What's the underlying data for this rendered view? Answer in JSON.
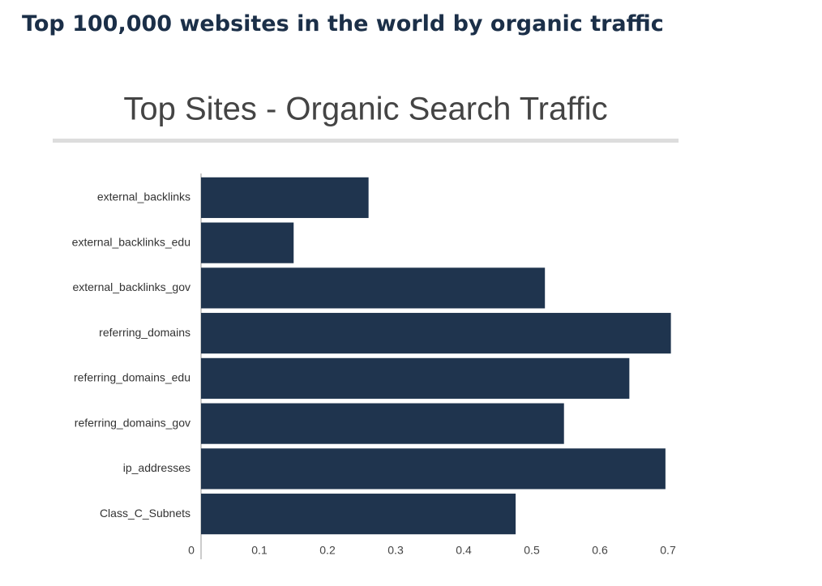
{
  "page_title": "Top 100,000 websites in the world by organic traffic",
  "chart_data": {
    "type": "hbar",
    "title": "Top Sites - Organic Search Traffic",
    "categories": [
      "external_backlinks",
      "external_backlinks_edu",
      "external_backlinks_gov",
      "referring_domains",
      "referring_domains_edu",
      "referring_domains_gov",
      "ip_addresses",
      "Class_C_Subnets"
    ],
    "values": [
      0.246,
      0.136,
      0.505,
      0.69,
      0.629,
      0.533,
      0.682,
      0.462
    ],
    "color": "#1f344e",
    "xlim": [
      0,
      0.7
    ],
    "xticks": [
      0,
      0.1,
      0.2,
      0.3,
      0.4,
      0.5,
      0.6,
      0.7
    ]
  }
}
